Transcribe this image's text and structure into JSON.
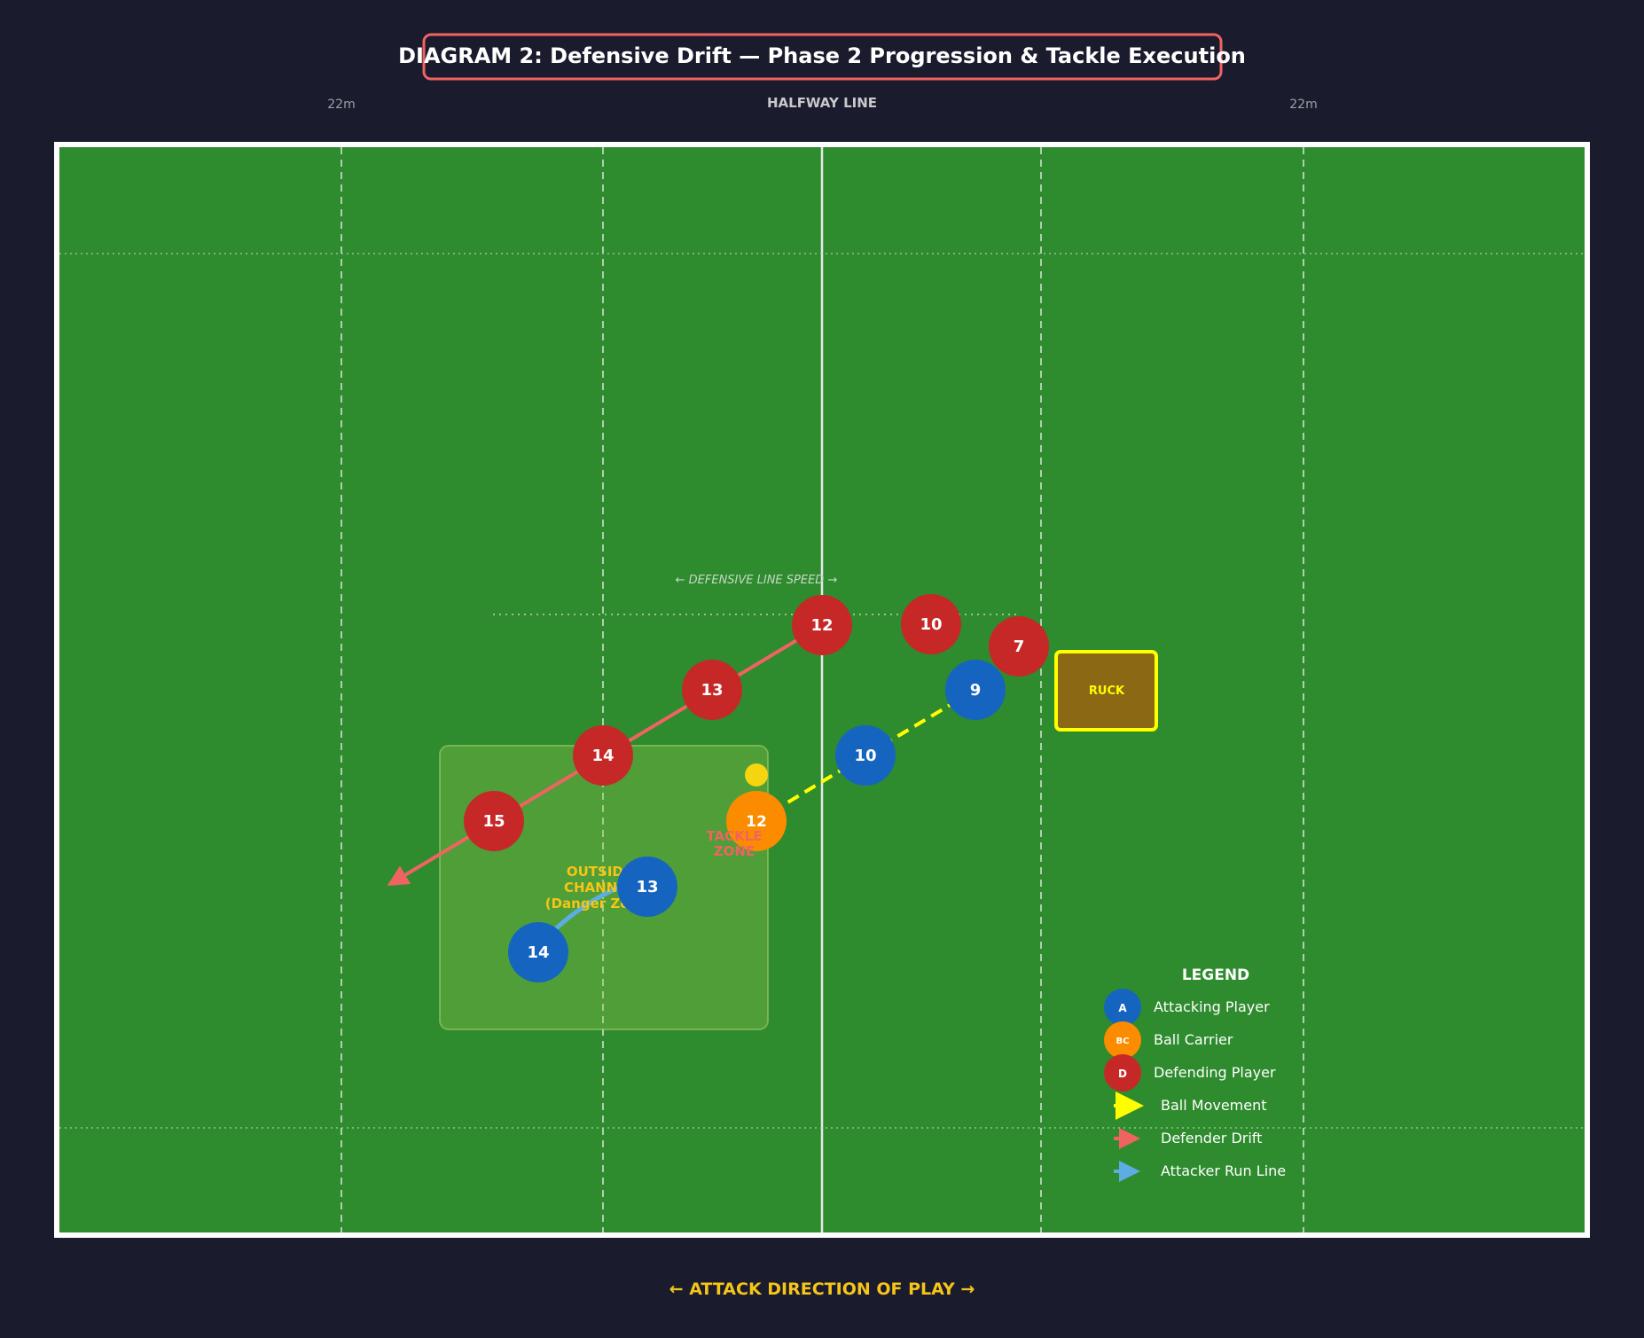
{
  "title": "DIAGRAM 2: Defensive Drift — Phase 2 Progression & Tackle Execution",
  "field_labels": {
    "left_22": "22m",
    "halfway": "HALFWAY LINE",
    "right_22": "22m"
  },
  "defensive_line_label": "← DEFENSIVE LINE SPEED →",
  "zone_labels": {
    "outside_channel": [
      "OUTSIDE",
      "CHANNEL",
      "(Danger Zone)"
    ],
    "tackle_zone": [
      "TACKLE",
      "ZONE"
    ],
    "ruck": "RUCK"
  },
  "attack_direction": "← ATTACK DIRECTION OF PLAY →",
  "players": {
    "defenders": [
      "12",
      "10",
      "7",
      "13",
      "14",
      "15"
    ],
    "attackers": [
      "9",
      "10",
      "13",
      "14"
    ],
    "ball_carrier": "12"
  },
  "legend": {
    "title": "LEGEND",
    "items": [
      {
        "symbol": "A",
        "label": "Attacking Player"
      },
      {
        "symbol": "BC",
        "label": "Ball Carrier"
      },
      {
        "symbol": "D",
        "label": "Defending Player"
      },
      {
        "symbol": "",
        "label": "Ball Movement"
      },
      {
        "symbol": "",
        "label": "Defender Drift"
      },
      {
        "symbol": "",
        "label": "Attacker Run Line"
      }
    ]
  },
  "colors": {
    "pitch": "#2e8b2e",
    "attacker": "#1565c0",
    "ball_carrier": "#fb8c00",
    "defender": "#c62828",
    "ball_movement": "#ffff00",
    "defender_drift": "#ef6461",
    "attacker_run": "#5dade2",
    "highlight": "#f5c518"
  }
}
